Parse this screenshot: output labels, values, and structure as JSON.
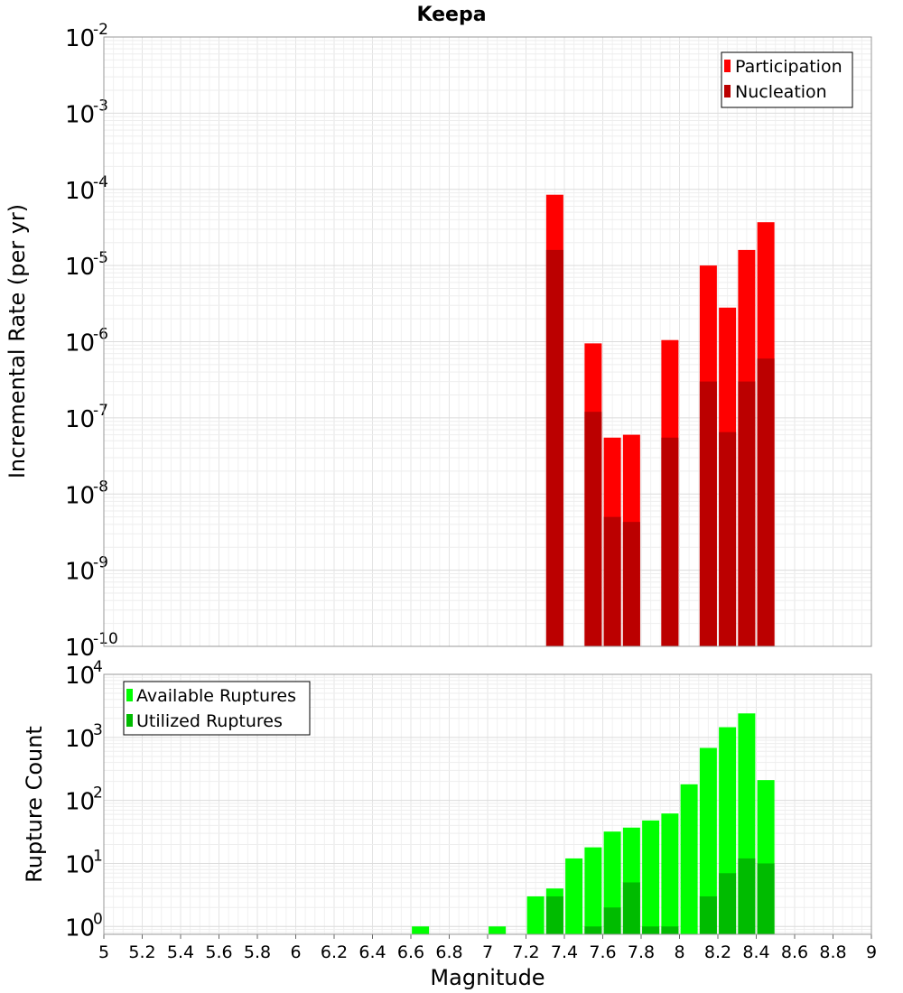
{
  "chart_data": [
    {
      "type": "bar",
      "title": "Keepa",
      "xlabel": "",
      "ylabel": "Incremental Rate (per yr)",
      "y_scale": "log",
      "ylim": [
        1e-10,
        0.01
      ],
      "xlim": [
        5,
        9
      ],
      "y_tick_exponents": [
        "-10",
        "-9",
        "-8",
        "-7",
        "-6",
        "-5",
        "-4",
        "-3",
        "-2"
      ],
      "y_tick_base": "10",
      "grid": true,
      "legend_position": "top-right",
      "series": [
        {
          "name": "Participation",
          "color": "#ff0000",
          "x": [
            7.35,
            7.55,
            7.65,
            7.75,
            7.95,
            8.15,
            8.25,
            8.35,
            8.45
          ],
          "values": [
            8.5e-05,
            9.5e-07,
            5.5e-08,
            6e-08,
            1.05e-06,
            1e-05,
            2.8e-06,
            1.6e-05,
            3.7e-05
          ]
        },
        {
          "name": "Nucleation",
          "color": "#bb0000",
          "x": [
            7.35,
            7.55,
            7.65,
            7.75,
            7.95,
            8.15,
            8.25,
            8.35,
            8.45
          ],
          "values": [
            1.6e-05,
            1.2e-07,
            5e-09,
            4.3e-09,
            5.5e-08,
            3e-07,
            6.5e-08,
            3e-07,
            6e-07
          ]
        }
      ]
    },
    {
      "type": "bar",
      "xlabel": "Magnitude",
      "ylabel": "Rupture Count",
      "y_scale": "log",
      "ylim": [
        0.75,
        10000
      ],
      "xlim": [
        5,
        9
      ],
      "x_ticks": [
        "5",
        "5.2",
        "5.4",
        "5.6",
        "5.8",
        "6",
        "6.2",
        "6.4",
        "6.6",
        "6.8",
        "7",
        "7.2",
        "7.4",
        "7.6",
        "7.8",
        "8",
        "8.2",
        "8.4",
        "8.6",
        "8.8",
        "9"
      ],
      "y_tick_exponents": [
        "0",
        "1",
        "2",
        "3",
        "4"
      ],
      "y_tick_base": "10",
      "grid": true,
      "legend_position": "top-left",
      "series": [
        {
          "name": "Available Ruptures",
          "color": "#00ff00",
          "x": [
            6.65,
            7.05,
            7.25,
            7.35,
            7.45,
            7.55,
            7.65,
            7.75,
            7.85,
            7.95,
            8.05,
            8.15,
            8.25,
            8.35,
            8.45
          ],
          "values": [
            1,
            1,
            3,
            4,
            12,
            18,
            32,
            37,
            48,
            62,
            180,
            680,
            1450,
            2400,
            210
          ]
        },
        {
          "name": "Utilized Ruptures",
          "color": "#00bb00",
          "x": [
            7.35,
            7.55,
            7.65,
            7.75,
            7.85,
            7.95,
            8.15,
            8.25,
            8.35,
            8.45
          ],
          "values": [
            3,
            1,
            2,
            5,
            1,
            1,
            3,
            7,
            12,
            10
          ]
        }
      ]
    }
  ]
}
